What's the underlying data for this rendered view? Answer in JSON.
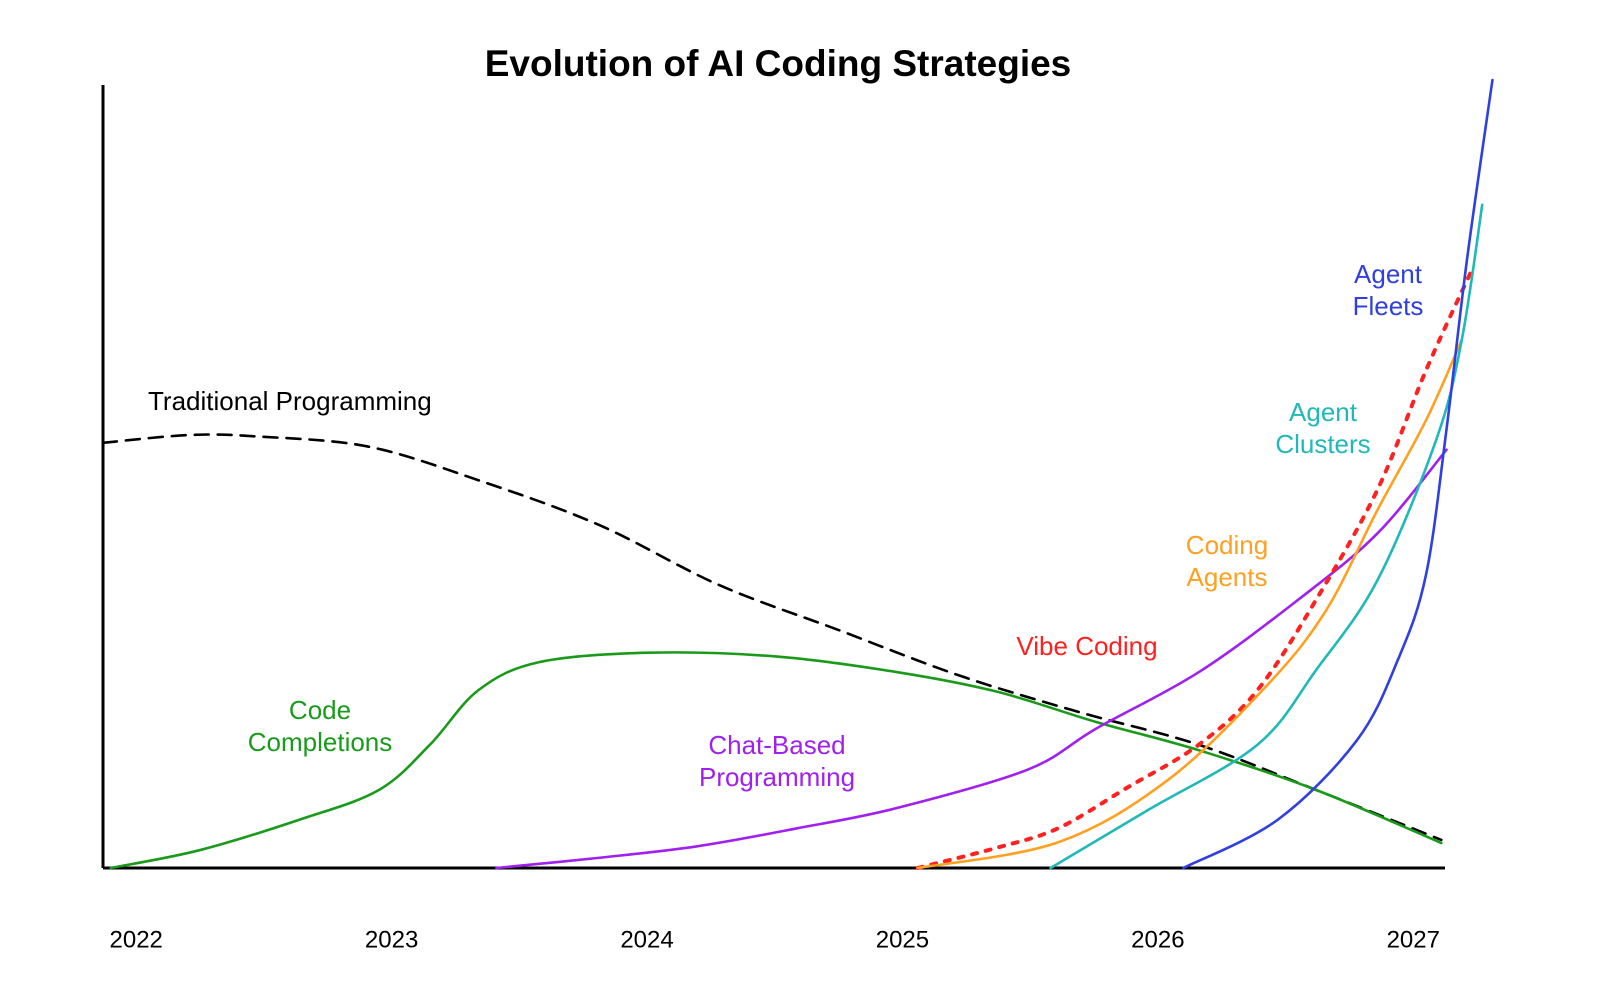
{
  "chart_data": {
    "type": "line",
    "title": "Evolution of AI Coding Strategies",
    "xlim": [
      2021.87,
      2027.32
    ],
    "ylim": [
      0,
      101
    ],
    "xticks": [
      2022,
      2023,
      2024,
      2025,
      2026,
      2027
    ],
    "grid": false,
    "series": [
      {
        "name": "Traditional Programming",
        "color": "#000000",
        "style": "dashed",
        "x": [
          2021.87,
          2022.21,
          2022.48,
          2022.91,
          2023.34,
          2023.81,
          2024.28,
          2024.75,
          2025.22,
          2025.69,
          2026.16,
          2026.62,
          2027.11
        ],
        "values": [
          54.5,
          55.5,
          55.3,
          54.0,
          49.7,
          44.0,
          36.3,
          30.5,
          24.7,
          20.0,
          15.8,
          10.0,
          3.6
        ]
      },
      {
        "name": "Code Completions",
        "color": "#1a9a1a",
        "style": "solid",
        "x": [
          2021.9,
          2022.25,
          2022.64,
          2022.95,
          2023.15,
          2023.34,
          2023.58,
          2024.01,
          2024.51,
          2024.98,
          2025.37,
          2025.76,
          2026.16,
          2026.62,
          2027.11
        ],
        "values": [
          0,
          2.3,
          6.2,
          10.0,
          15.8,
          22.8,
          26.4,
          27.6,
          27.1,
          25.1,
          22.6,
          18.7,
          15.1,
          10.0,
          3.2
        ]
      },
      {
        "name": "Chat-Based Programming",
        "color": "#a020f0",
        "style": "solid",
        "x": [
          2023.41,
          2023.81,
          2024.2,
          2024.59,
          2024.98,
          2025.49,
          2025.76,
          2026.16,
          2026.55,
          2026.86,
          2027.13
        ],
        "values": [
          0,
          1.3,
          2.8,
          5.1,
          7.7,
          12.6,
          17.9,
          25.1,
          34.4,
          42.9,
          53.6
        ]
      },
      {
        "name": "Vibe Coding",
        "color": "#ff2020",
        "style": "dotted",
        "x": [
          2025.06,
          2025.37,
          2025.61,
          2025.88,
          2026.16,
          2026.39,
          2026.62,
          2026.86,
          2027.05,
          2027.23
        ],
        "values": [
          0,
          2.6,
          5.1,
          10.3,
          15.8,
          22.8,
          34.4,
          48.5,
          63.8,
          76.7
        ]
      },
      {
        "name": "Coding Agents",
        "color": "#ffa020",
        "style": "solid",
        "x": [
          2025.06,
          2025.61,
          2026.04,
          2026.43,
          2026.66,
          2026.86,
          2027.05,
          2027.19
        ],
        "values": [
          0,
          3.3,
          11.3,
          23.5,
          33.1,
          45.9,
          57.4,
          67.7
        ]
      },
      {
        "name": "Agent Clusters",
        "color": "#20b8b8",
        "style": "solid",
        "x": [
          2025.58,
          2025.96,
          2026.39,
          2026.62,
          2026.86,
          2027.09,
          2027.19,
          2027.27
        ],
        "values": [
          0,
          7.4,
          15.8,
          25.4,
          36.9,
          54.9,
          67.7,
          85.0
        ]
      },
      {
        "name": "Agent Fleets",
        "color": "#3040e0",
        "style": "solid",
        "x": [
          2026.1,
          2026.47,
          2026.78,
          2026.94,
          2027.05,
          2027.13,
          2027.21,
          2027.31
        ],
        "values": [
          0,
          6.2,
          16.4,
          26.7,
          37.6,
          56.2,
          77.9,
          101.0
        ]
      }
    ]
  }
}
